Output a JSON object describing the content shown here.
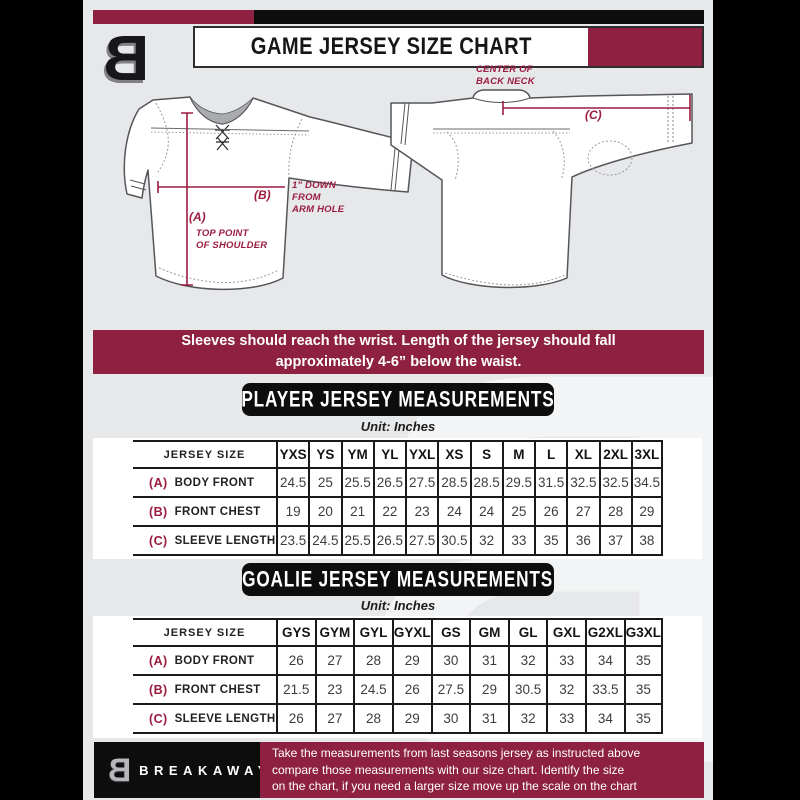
{
  "colors": {
    "maroon": "#8e2142",
    "black": "#0d0d0d",
    "background": "#e7e8ea",
    "annotation": "#9b1c40"
  },
  "header": {
    "logo_letter": "B",
    "title": "GAME JERSEY SIZE CHART"
  },
  "diagram": {
    "front": {
      "a_key": "(A)",
      "a_text": "TOP POINT\nOF SHOULDER",
      "b_key": "(B)",
      "b_text": "1\" DOWN\nFROM\nARM HOLE"
    },
    "back": {
      "c_key": "(C)",
      "c_text": "CENTER OF\nBACK NECK"
    }
  },
  "notice": {
    "text": "Sleeves should reach the wrist. Length of the jersey should fall\napproximately 4-6” below the waist."
  },
  "player_table": {
    "heading": "PLAYER JERSEY MEASUREMENTS",
    "unit": "Unit: Inches",
    "col_header": "JERSEY SIZE",
    "sizes": [
      "YXS",
      "YS",
      "YM",
      "YL",
      "YXL",
      "XS",
      "S",
      "M",
      "L",
      "XL",
      "2XL",
      "3XL"
    ],
    "rows": [
      {
        "key": "(A)",
        "label": "BODY FRONT",
        "values": [
          "24.5",
          "25",
          "25.5",
          "26.5",
          "27.5",
          "28.5",
          "28.5",
          "29.5",
          "31.5",
          "32.5",
          "32.5",
          "34.5"
        ]
      },
      {
        "key": "(B)",
        "label": "FRONT CHEST",
        "values": [
          "19",
          "20",
          "21",
          "22",
          "23",
          "24",
          "24",
          "25",
          "26",
          "27",
          "28",
          "29"
        ]
      },
      {
        "key": "(C)",
        "label": "SLEEVE LENGTH",
        "values": [
          "23.5",
          "24.5",
          "25.5",
          "26.5",
          "27.5",
          "30.5",
          "32",
          "33",
          "35",
          "36",
          "37",
          "38"
        ]
      }
    ]
  },
  "goalie_table": {
    "heading": "GOALIE JERSEY MEASUREMENTS",
    "unit": "Unit: Inches",
    "col_header": "JERSEY SIZE",
    "sizes": [
      "GYS",
      "GYM",
      "GYL",
      "GYXL",
      "GS",
      "GM",
      "GL",
      "GXL",
      "G2XL",
      "G3XL"
    ],
    "rows": [
      {
        "key": "(A)",
        "label": "BODY FRONT",
        "values": [
          "26",
          "27",
          "28",
          "29",
          "30",
          "31",
          "32",
          "33",
          "34",
          "35"
        ]
      },
      {
        "key": "(B)",
        "label": "FRONT CHEST",
        "values": [
          "21.5",
          "23",
          "24.5",
          "26",
          "27.5",
          "29",
          "30.5",
          "32",
          "33.5",
          "35"
        ]
      },
      {
        "key": "(C)",
        "label": "SLEEVE LENGTH",
        "values": [
          "26",
          "27",
          "28",
          "29",
          "30",
          "31",
          "32",
          "33",
          "34",
          "35"
        ]
      }
    ]
  },
  "footer": {
    "logo_letter": "B",
    "brand": "BREAKAWAY",
    "text": "Take the measurements from last seasons jersey as instructed above\ncompare those measurements  with our size chart. Identify the size\non the chart, if you need a larger size move up the scale on the chart"
  }
}
